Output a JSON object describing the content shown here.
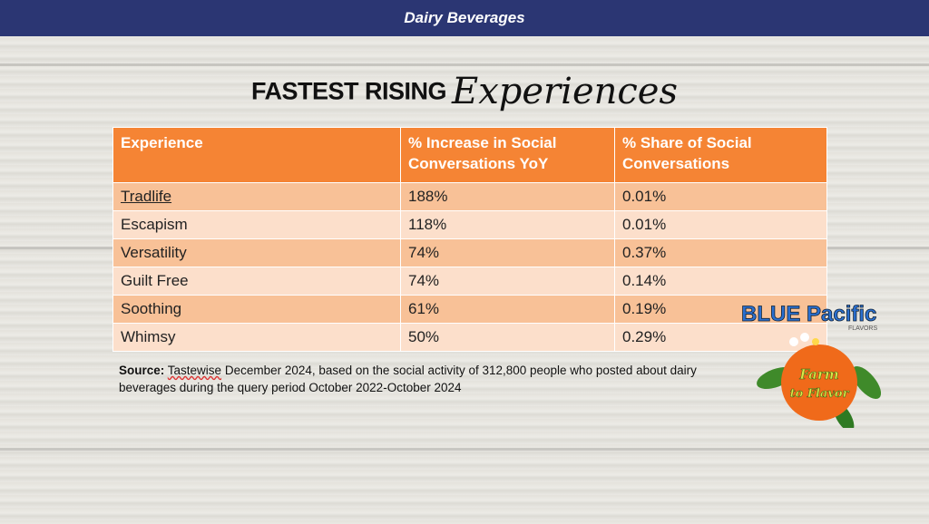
{
  "header": {
    "title": "Dairy Beverages"
  },
  "slide": {
    "title_bold": "FASTEST RISING",
    "title_script": "Experiences"
  },
  "table": {
    "columns": [
      "Experience",
      "% Increase in Social Conversations YoY",
      "% Share of Social Conversations"
    ],
    "rows": [
      [
        "Tradlife",
        "188%",
        "0.01%"
      ],
      [
        "Escapism",
        "118%",
        "0.01%"
      ],
      [
        "Versatility",
        "74%",
        "0.37%"
      ],
      [
        "Guilt Free",
        "74%",
        "0.14%"
      ],
      [
        "Soothing",
        "61%",
        "0.19%"
      ],
      [
        "Whimsy",
        "50%",
        "0.29%"
      ]
    ]
  },
  "source": {
    "label": "Source:",
    "brand": "Tastewise",
    "text": " December 2024, based on the social activity of 312,800 people who posted about dairy beverages during the query period October 2022-October 2024"
  },
  "logo": {
    "brand": "BLUE Pacific",
    "sub": "FLAVORS",
    "badge": "Farm to Flavor"
  },
  "colors": {
    "header": "#2b3673",
    "table_header": "#f58434",
    "row_dark": "#f8c197",
    "row_light": "#fcdfcb"
  }
}
